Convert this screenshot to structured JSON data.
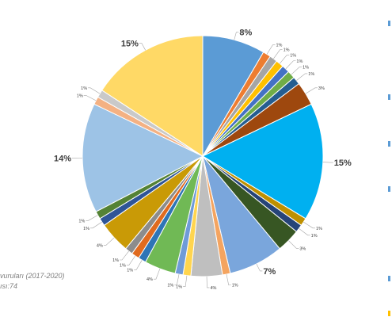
{
  "chart_data": {
    "type": "pie",
    "title": "",
    "start_angle_deg": 0,
    "direction": "clockwise",
    "slices": [
      {
        "value": 8,
        "label": "8%",
        "color": "#5b9bd5",
        "big": true
      },
      {
        "value": 1,
        "label": "1%",
        "color": "#ed7d31"
      },
      {
        "value": 1,
        "label": "1%",
        "color": "#a5a5a5"
      },
      {
        "value": 1,
        "label": "1%",
        "color": "#ffc000"
      },
      {
        "value": 1,
        "label": "1%",
        "color": "#4472c4"
      },
      {
        "value": 1,
        "label": "1%",
        "color": "#70ad47"
      },
      {
        "value": 1,
        "label": "1%",
        "color": "#255e91"
      },
      {
        "value": 3,
        "label": "3%",
        "color": "#9e480e"
      },
      {
        "value": 15,
        "label": "15%",
        "color": "#00b0f0",
        "big": true
      },
      {
        "value": 1,
        "label": "1%",
        "color": "#bf9000"
      },
      {
        "value": 1,
        "label": "1%",
        "color": "#264478"
      },
      {
        "value": 3,
        "label": "3%",
        "color": "#375623"
      },
      {
        "value": 7,
        "label": "7%",
        "color": "#7aa6dc",
        "big": true
      },
      {
        "value": 1,
        "label": "1%",
        "color": "#f4a460"
      },
      {
        "value": 4,
        "label": "4%",
        "color": "#bfbfbf"
      },
      {
        "value": 1,
        "label": "1%",
        "color": "#ffd54f"
      },
      {
        "value": 1,
        "label": "1%",
        "color": "#6f9bd8"
      },
      {
        "value": 4,
        "label": "4%",
        "color": "#70b955"
      },
      {
        "value": 1,
        "label": "1%",
        "color": "#2e75b6"
      },
      {
        "value": 1,
        "label": "1%",
        "color": "#e06b1f"
      },
      {
        "value": 1,
        "label": "1%",
        "color": "#8c8c8c"
      },
      {
        "value": 4,
        "label": "4%",
        "color": "#c99a06"
      },
      {
        "value": 1,
        "label": "1%",
        "color": "#2f5597"
      },
      {
        "value": 1,
        "label": "1%",
        "color": "#548235"
      },
      {
        "value": 14,
        "label": "14%",
        "color": "#9dc3e6",
        "big": true
      },
      {
        "value": 1,
        "label": "1%",
        "color": "#f4b183"
      },
      {
        "value": 1,
        "label": "1%",
        "color": "#c9c9c9"
      },
      {
        "value": 15,
        "label": "15%",
        "color": "#ffd966",
        "big": true
      }
    ]
  },
  "caption": {
    "line1": "vuruları (2017-2020)",
    "line2": "ısı:74"
  },
  "side_marks": [
    {
      "color": "#5b9bd5"
    },
    {
      "color": "#5b9bd5"
    },
    {
      "color": "#5b9bd5"
    },
    {
      "color": "#5b9bd5"
    },
    {
      "color": "#5b9bd5"
    },
    {
      "color": "#ffc000"
    }
  ]
}
